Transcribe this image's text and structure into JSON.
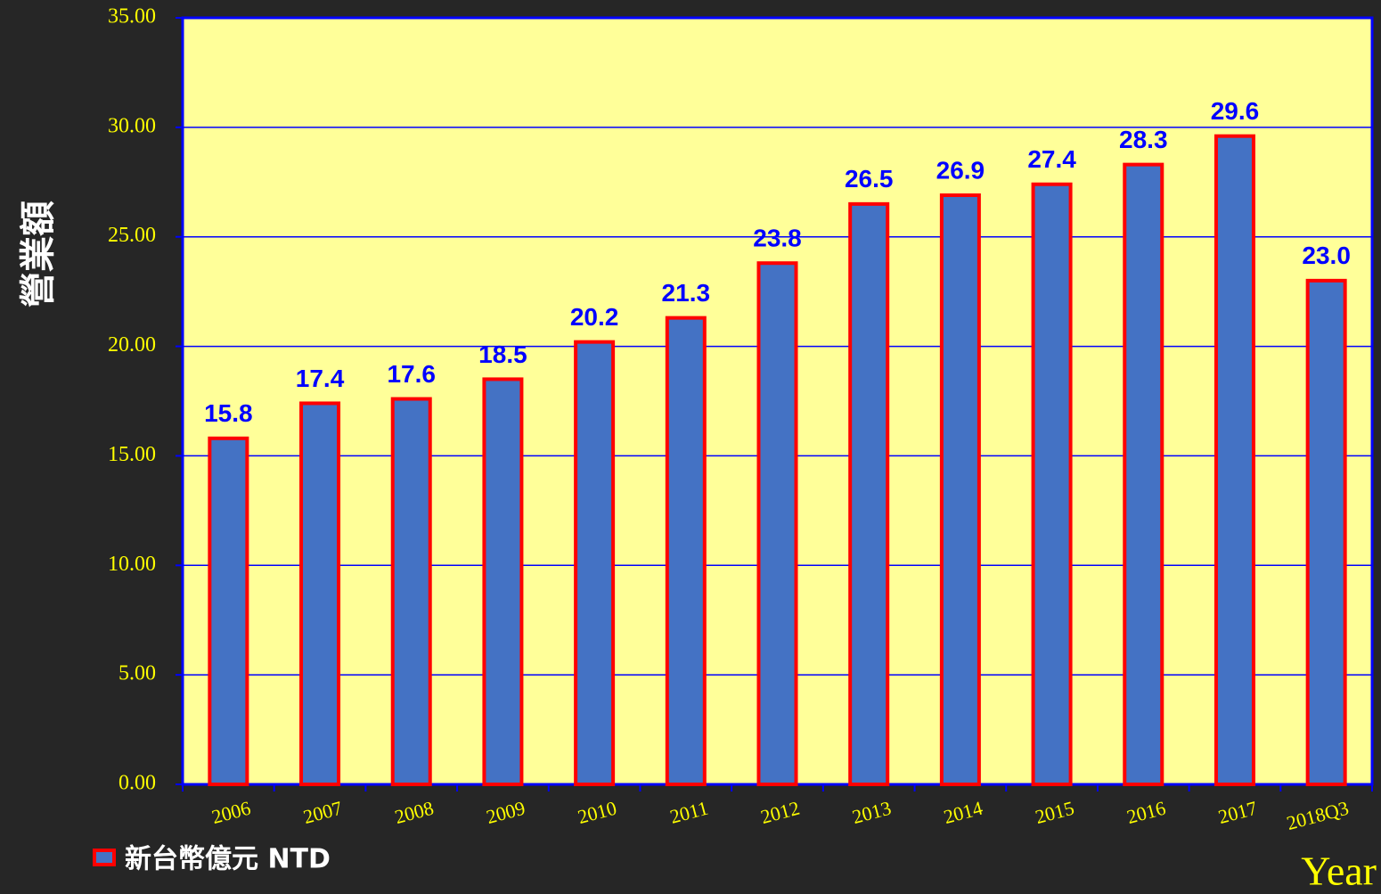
{
  "chart_data": {
    "type": "bar",
    "ylabel": "營業額",
    "xlabel": "Year",
    "categories": [
      "2006",
      "2007",
      "2008",
      "2009",
      "2010",
      "2011",
      "2012",
      "2013",
      "2014",
      "2015",
      "2016",
      "2017",
      "2018Q3"
    ],
    "series": [
      {
        "name": "新台幣億元 NTD",
        "color": "#4472c4",
        "edgecolor": "#ff0000",
        "values": [
          15.8,
          17.4,
          17.6,
          18.5,
          20.2,
          21.3,
          23.8,
          26.5,
          26.9,
          27.4,
          28.3,
          29.6,
          23.0
        ],
        "value_labels": [
          "15.8",
          "17.4",
          "17.6",
          "18.5",
          "20.2",
          "21.3",
          "23.8",
          "26.5",
          "26.9",
          "27.4",
          "28.3",
          "29.6",
          "23.0"
        ]
      }
    ],
    "ylim": [
      0,
      35
    ],
    "yticks": [
      {
        "value": 0,
        "label": "0.00"
      },
      {
        "value": 5,
        "label": "5.00"
      },
      {
        "value": 10,
        "label": "10.00"
      },
      {
        "value": 15,
        "label": "15.00"
      },
      {
        "value": 20,
        "label": "20.00"
      },
      {
        "value": 25,
        "label": "25.00"
      },
      {
        "value": 30,
        "label": "30.00"
      },
      {
        "value": 35,
        "label": "35.00"
      }
    ],
    "grid": true,
    "legend": "lower left"
  }
}
